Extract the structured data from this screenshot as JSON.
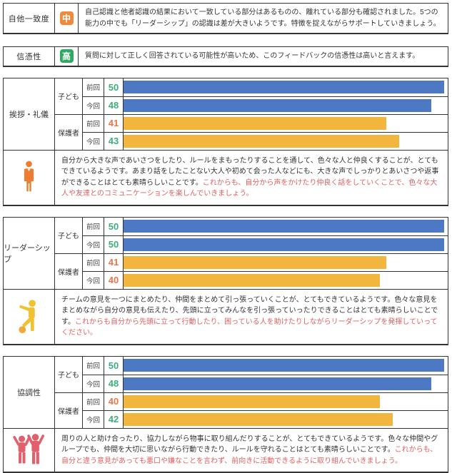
{
  "colors": {
    "child_bar": "#4d79c4",
    "guardian_bar": "#f2b53d",
    "score_green": "#3fae7d",
    "score_orange": "#e8764e",
    "advice_text": "#e05f5f",
    "badge_mid_bg": "#ed8a3c",
    "badge_high_bg": "#2baa60",
    "icon_orange": "#ed7d31",
    "icon_yellow": "#f0c232",
    "icon_red": "#e2606b",
    "border": "#333333"
  },
  "summary": [
    {
      "label": "自他一致度",
      "badge": "中",
      "level": "mid",
      "text": "自己認識と他者認識の結果において一致している部分はあるものの、離れている部分も確認されました。5つの能力の中でも「リーダーシップ」の認識は差が大きいようです。特徴を捉えながらサポートしていきましょう。"
    },
    {
      "label": "信憑性",
      "badge": "高",
      "level": "high",
      "text": "質問に対して正しく回答されている可能性が高いため、このフィードバックの信憑性は高いと言えます。"
    }
  ],
  "chart_data": [
    {
      "type": "bar",
      "section": "挨拶・礼儀",
      "max": 50,
      "xlim": [
        0,
        50
      ],
      "icon": "standing-person-icon",
      "rows": [
        {
          "group": "子ども",
          "time": "前回",
          "value": 50,
          "score_color": "green",
          "bar_color": "child_bar"
        },
        {
          "group": "子ども",
          "time": "今回",
          "value": 48,
          "score_color": "green",
          "bar_color": "child_bar"
        },
        {
          "group": "保護者",
          "time": "前回",
          "value": 41,
          "score_color": "orange",
          "bar_color": "guardian_bar"
        },
        {
          "group": "保護者",
          "time": "今回",
          "value": 43,
          "score_color": "green",
          "bar_color": "guardian_bar"
        }
      ],
      "comment": "自分から大きな声であいさつをしたり、ルールをまもったりすることを通して、色々な人と仲良くすることが、とてもできているようです。あまり話をしたことない大人や初めて会った人などにも、大きな声でしっかりとあいさつや返事ができることはとても素晴らしいことです。",
      "advice": "これからも、自分から声をかけたり仲良く話をしていくことで、色々な大人や友達とのコミュニケーションを楽しんでいきましょう。"
    },
    {
      "type": "bar",
      "section": "リーダーシップ",
      "max": 50,
      "xlim": [
        0,
        50
      ],
      "icon": "soccer-player-icon",
      "rows": [
        {
          "group": "子ども",
          "time": "前回",
          "value": 50,
          "score_color": "green",
          "bar_color": "child_bar"
        },
        {
          "group": "子ども",
          "time": "今回",
          "value": 50,
          "score_color": "green",
          "bar_color": "child_bar"
        },
        {
          "group": "保護者",
          "time": "前回",
          "value": 41,
          "score_color": "orange",
          "bar_color": "guardian_bar"
        },
        {
          "group": "保護者",
          "time": "今回",
          "value": 40,
          "score_color": "orange",
          "bar_color": "guardian_bar"
        }
      ],
      "comment": "チームの意見を一つにまとめたり、仲間をまとめて引っ張っていくことが、とてもできているようです。色々な意見をまとめながら自分の意見も伝えたり、先頭に立ってみんなを引っ張っていったりできることはとても素晴らしいことです。",
      "advice": "これからも自分から先頭に立って行動したり、困っている人を助けたりしながらリーダーシップを発揮していってください。"
    },
    {
      "type": "bar",
      "section": "協調性",
      "max": 50,
      "xlim": [
        0,
        50
      ],
      "icon": "two-people-icon",
      "rows": [
        {
          "group": "子ども",
          "time": "前回",
          "value": 50,
          "score_color": "green",
          "bar_color": "child_bar"
        },
        {
          "group": "子ども",
          "time": "今回",
          "value": 48,
          "score_color": "green",
          "bar_color": "child_bar"
        },
        {
          "group": "保護者",
          "time": "前回",
          "value": 40,
          "score_color": "orange",
          "bar_color": "guardian_bar"
        },
        {
          "group": "保護者",
          "time": "今回",
          "value": 42,
          "score_color": "green",
          "bar_color": "guardian_bar"
        }
      ],
      "comment": "周りの人と助け合ったり、協力しながら物事に取り組んだりすることが、とてもできているようです。色々な仲間やグループでも、仲間を大切に思いながら行動できたり、ルールを守れることはとても素晴らしいことです。",
      "advice": "これからも、自分と違う意見があっても悪口や嫌なことを言わず、前向きに活動できるように取り組んでいきましょう。"
    }
  ]
}
